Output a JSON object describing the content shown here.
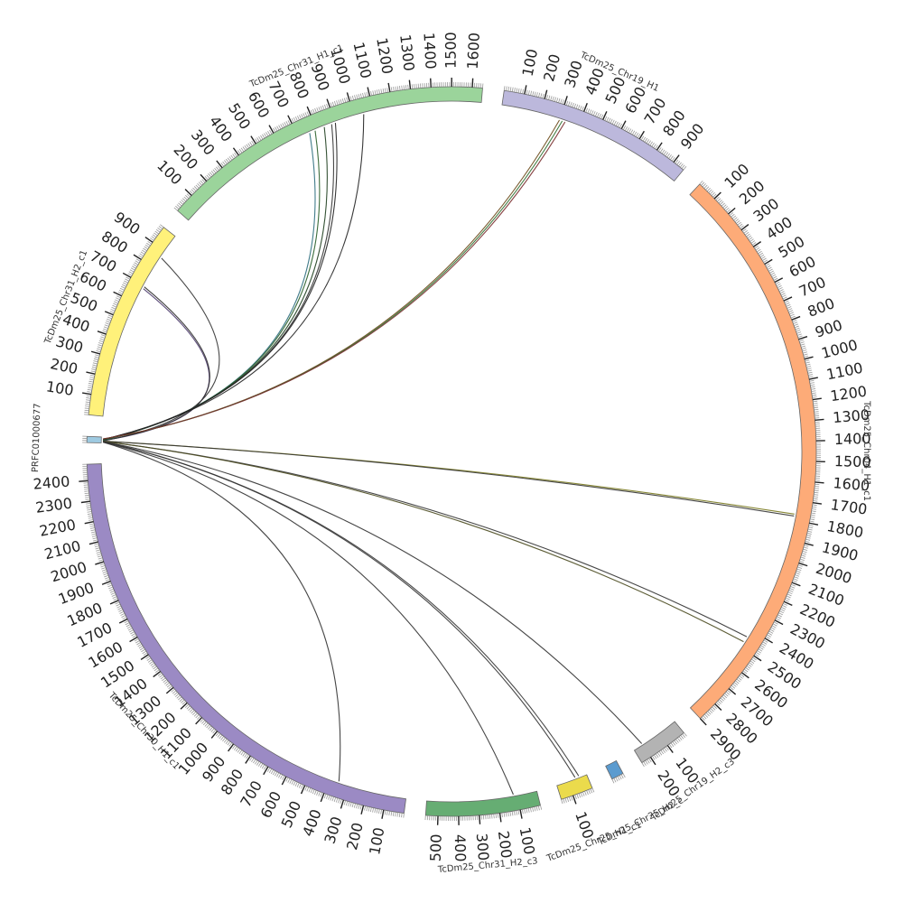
{
  "chart_data": {
    "type": "chord",
    "segments": [
      {
        "id": "PRFC01000677",
        "label": "PRFC01000677",
        "color": "#9ecae1",
        "length": 30,
        "tick_step": 0
      },
      {
        "id": "TcDm25_Chr31_H2_c1",
        "label": "TcDm25_Chr31_H2_c1",
        "color": "#fff17a",
        "length": 990,
        "tick_step": 100
      },
      {
        "id": "TcDm25_Chr31_H1_c1",
        "label": "TcDm25_Chr31_H1_c1",
        "color": "#9bd49b",
        "length": 1650,
        "tick_step": 100
      },
      {
        "id": "TcDm25_Chr19_H1",
        "label": "TcDm25_Chr19_H1",
        "color": "#bcb8dc",
        "length": 960,
        "tick_step": 100
      },
      {
        "id": "TcDm25_Chr04_H1_c1",
        "label": "TcDm25_Chr04_H1_c1",
        "color": "#fdab78",
        "length": 2900,
        "tick_step": 100
      },
      {
        "id": "TcDm25_Chr19_H2_c3",
        "label": "TcDm25_Chr19_H2_c3",
        "color": "#b3b3b3",
        "length": 250,
        "tick_step": 100
      },
      {
        "id": "TcDm25_Chr25_H2_c",
        "label": "TcDm25_Chr25_H2_c",
        "color": "#5b9bcf",
        "length": 60,
        "tick_step": 0
      },
      {
        "id": "TcDm25_Chr25_H1_c1",
        "label": "TcDm25_Chr25_H1_c1",
        "color": "#ebdb4c",
        "length": 160,
        "tick_step": 100
      },
      {
        "id": "TcDm25_Chr31_H2_c3",
        "label": "TcDm25_Chr31_H2_c3",
        "color": "#66ad73",
        "length": 560,
        "tick_step": 100
      },
      {
        "id": "TcDm25_Chr30_H1_c1",
        "label": "TcDm25_Chr30_H1_c1",
        "color": "#9b8ac4",
        "length": 2480,
        "tick_step": 100
      }
    ],
    "links": [
      {
        "src": "PRFC01000677",
        "src_pos": 12,
        "dst": "TcDm25_Chr31_H2_c1",
        "dst_pos": 680,
        "color": "#4b3a6b"
      },
      {
        "src": "PRFC01000677",
        "src_pos": 13,
        "dst": "TcDm25_Chr31_H2_c1",
        "dst_pos": 690,
        "color": "#2b2b2b"
      },
      {
        "src": "PRFC01000677",
        "src_pos": 11,
        "dst": "TcDm25_Chr31_H2_c1",
        "dst_pos": 860,
        "color": "#333333"
      },
      {
        "src": "PRFC01000677",
        "src_pos": 14,
        "dst": "TcDm25_Chr31_H1_c1",
        "dst_pos": 760,
        "color": "#2f6f7f"
      },
      {
        "src": "PRFC01000677",
        "src_pos": 15,
        "dst": "TcDm25_Chr31_H1_c1",
        "dst_pos": 790,
        "color": "#2a5f2a"
      },
      {
        "src": "PRFC01000677",
        "src_pos": 16,
        "dst": "TcDm25_Chr31_H1_c1",
        "dst_pos": 840,
        "color": "#1f3f1f"
      },
      {
        "src": "PRFC01000677",
        "src_pos": 17,
        "dst": "TcDm25_Chr31_H1_c1",
        "dst_pos": 880,
        "color": "#333333"
      },
      {
        "src": "PRFC01000677",
        "src_pos": 18,
        "dst": "TcDm25_Chr31_H1_c1",
        "dst_pos": 900,
        "color": "#222222"
      },
      {
        "src": "PRFC01000677",
        "src_pos": 19,
        "dst": "TcDm25_Chr31_H1_c1",
        "dst_pos": 1050,
        "color": "#222222"
      },
      {
        "src": "PRFC01000677",
        "src_pos": 20,
        "dst": "TcDm25_Chr19_H1",
        "dst_pos": 300,
        "color": "#6b4a1a"
      },
      {
        "src": "PRFC01000677",
        "src_pos": 20,
        "dst": "TcDm25_Chr19_H1",
        "dst_pos": 315,
        "color": "#2f6f2f"
      },
      {
        "src": "PRFC01000677",
        "src_pos": 21,
        "dst": "TcDm25_Chr19_H1",
        "dst_pos": 330,
        "color": "#7a2f2f"
      },
      {
        "src": "PRFC01000677",
        "src_pos": 9,
        "dst": "TcDm25_Chr04_H1_c1",
        "dst_pos": 1770,
        "color": "#7a7a20"
      },
      {
        "src": "PRFC01000677",
        "src_pos": 9,
        "dst": "TcDm25_Chr04_H1_c1",
        "dst_pos": 1780,
        "color": "#333333"
      },
      {
        "src": "PRFC01000677",
        "src_pos": 8,
        "dst": "TcDm25_Chr04_H1_c1",
        "dst_pos": 2440,
        "color": "#333333"
      },
      {
        "src": "PRFC01000677",
        "src_pos": 8,
        "dst": "TcDm25_Chr04_H1_c1",
        "dst_pos": 2470,
        "color": "#4b4b20"
      },
      {
        "src": "PRFC01000677",
        "src_pos": 7,
        "dst": "TcDm25_Chr19_H2_c3",
        "dst_pos": 200,
        "color": "#333333"
      },
      {
        "src": "PRFC01000677",
        "src_pos": 6,
        "dst": "TcDm25_Chr25_H1_c1",
        "dst_pos": 40,
        "color": "#333333"
      },
      {
        "src": "PRFC01000677",
        "src_pos": 6,
        "dst": "TcDm25_Chr25_H1_c1",
        "dst_pos": 60,
        "color": "#333333"
      },
      {
        "src": "PRFC01000677",
        "src_pos": 5,
        "dst": "TcDm25_Chr31_H2_c3",
        "dst_pos": 120,
        "color": "#333333"
      },
      {
        "src": "PRFC01000677",
        "src_pos": 4,
        "dst": "TcDm25_Chr30_H1_c1",
        "dst_pos": 350,
        "color": "#333333"
      }
    ]
  }
}
